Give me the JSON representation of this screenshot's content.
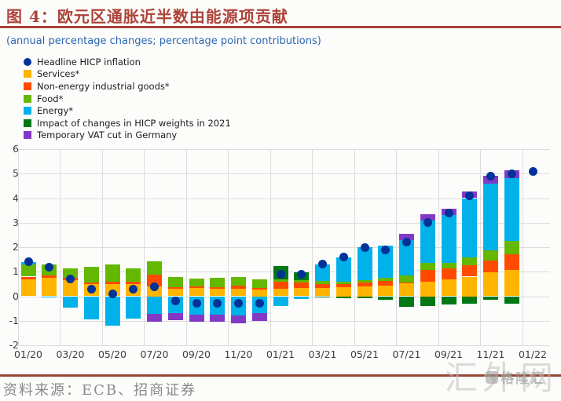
{
  "title": "图 4：欧元区通胀近半数由能源项贡献",
  "subtitle": "(annual percentage changes; percentage point contributions)",
  "source": "资料来源：ECB、招商证券",
  "watermark": "汇外网",
  "watermark_small": "格隆汇",
  "colors": {
    "title_red": "#ad4339",
    "rule_red": "#a8423a",
    "rule_brown": "#964734",
    "subtitle_blue": "#2a66b0",
    "headline": "#003299",
    "services": "#ffb400",
    "neig": "#ff4b00",
    "food": "#65b800",
    "energy": "#00b1ea",
    "weights": "#007816",
    "vat": "#8139c6",
    "grid": "#dcdcdc"
  },
  "chart_data": {
    "type": "bar",
    "subtype": "stacked-bars-with-scatter",
    "title": "欧元区通胀近半数由能源项贡献",
    "subtitle": "(annual percentage changes; percentage point contributions)",
    "grid": true,
    "legend_position": "top-left",
    "ylim": [
      -2,
      6
    ],
    "y_ticks": [
      6,
      5,
      4,
      3,
      2,
      1,
      0,
      -1,
      -2
    ],
    "x_tick_labels": [
      "01/20",
      "03/20",
      "05/20",
      "07/20",
      "09/20",
      "11/20",
      "01/21",
      "03/21",
      "05/21",
      "07/21",
      "09/21",
      "11/21",
      "01/22"
    ],
    "categories": [
      "01/20",
      "02/20",
      "03/20",
      "04/20",
      "05/20",
      "06/20",
      "07/20",
      "08/20",
      "09/20",
      "10/20",
      "11/20",
      "12/20",
      "01/21",
      "02/21",
      "03/21",
      "04/21",
      "05/21",
      "06/21",
      "07/21",
      "08/21",
      "09/21",
      "10/21",
      "11/21",
      "12/21",
      "01/22"
    ],
    "series": [
      {
        "name": "Services*",
        "color": "#ffb400",
        "values": [
          0.7,
          0.75,
          0.65,
          0.5,
          0.5,
          0.5,
          0.4,
          0.3,
          0.33,
          0.3,
          0.3,
          0.28,
          0.31,
          0.33,
          0.35,
          0.36,
          0.4,
          0.43,
          0.55,
          0.6,
          0.7,
          0.8,
          0.97,
          1.07,
          0
        ]
      },
      {
        "name": "Non-energy industrial goods*",
        "color": "#ff4b00",
        "values": [
          0.1,
          0.1,
          0.1,
          0.07,
          0.1,
          0.08,
          0.47,
          0.08,
          0.07,
          0.06,
          0.12,
          0.05,
          0.29,
          0.23,
          0.15,
          0.14,
          0.17,
          0.2,
          0.02,
          0.47,
          0.45,
          0.45,
          0.48,
          0.64,
          0
        ]
      },
      {
        "name": "Food*",
        "color": "#65b800",
        "values": [
          0.5,
          0.45,
          0.4,
          0.63,
          0.7,
          0.57,
          0.55,
          0.4,
          0.32,
          0.38,
          0.35,
          0.35,
          0.08,
          0.1,
          0.13,
          0.08,
          0.1,
          0.11,
          0.28,
          0.28,
          0.2,
          0.32,
          0.42,
          0.55,
          0
        ]
      },
      {
        "name": "Energy*",
        "color": "#00b1ea",
        "values": [
          0.1,
          -0.05,
          -0.45,
          -0.95,
          -1.2,
          -0.9,
          -0.73,
          -0.7,
          -0.75,
          -0.75,
          -0.78,
          -0.7,
          -0.41,
          -0.12,
          0.66,
          1.01,
          1.34,
          1.31,
          1.43,
          1.75,
          1.96,
          2.43,
          2.72,
          2.56,
          0
        ]
      },
      {
        "name": "Impact of changes in HICP weights in 2021",
        "color": "#007816",
        "values": [
          0,
          0,
          0,
          0,
          0,
          0,
          0,
          0,
          0,
          0,
          0,
          0,
          0.55,
          0.33,
          -0.05,
          -0.08,
          -0.08,
          -0.15,
          -0.42,
          -0.4,
          -0.33,
          -0.3,
          -0.15,
          -0.31,
          0
        ]
      },
      {
        "name": "Temporary VAT cut in Germany",
        "color": "#8139c6",
        "values": [
          0,
          0,
          0,
          0,
          0,
          0,
          -0.32,
          -0.29,
          -0.3,
          -0.3,
          -0.32,
          -0.3,
          0,
          0,
          0,
          0,
          0,
          0,
          0.26,
          0.26,
          0.26,
          0.27,
          0.31,
          0.32,
          0
        ]
      }
    ],
    "scatter": {
      "name": "Headline HICP inflation",
      "color": "#003299",
      "values": [
        1.4,
        1.2,
        0.7,
        0.3,
        0.1,
        0.3,
        0.4,
        -0.2,
        -0.3,
        -0.3,
        -0.3,
        -0.3,
        0.9,
        0.9,
        1.3,
        1.6,
        2.0,
        1.9,
        2.2,
        3.0,
        3.4,
        4.1,
        4.9,
        5.0,
        5.1
      ]
    }
  }
}
